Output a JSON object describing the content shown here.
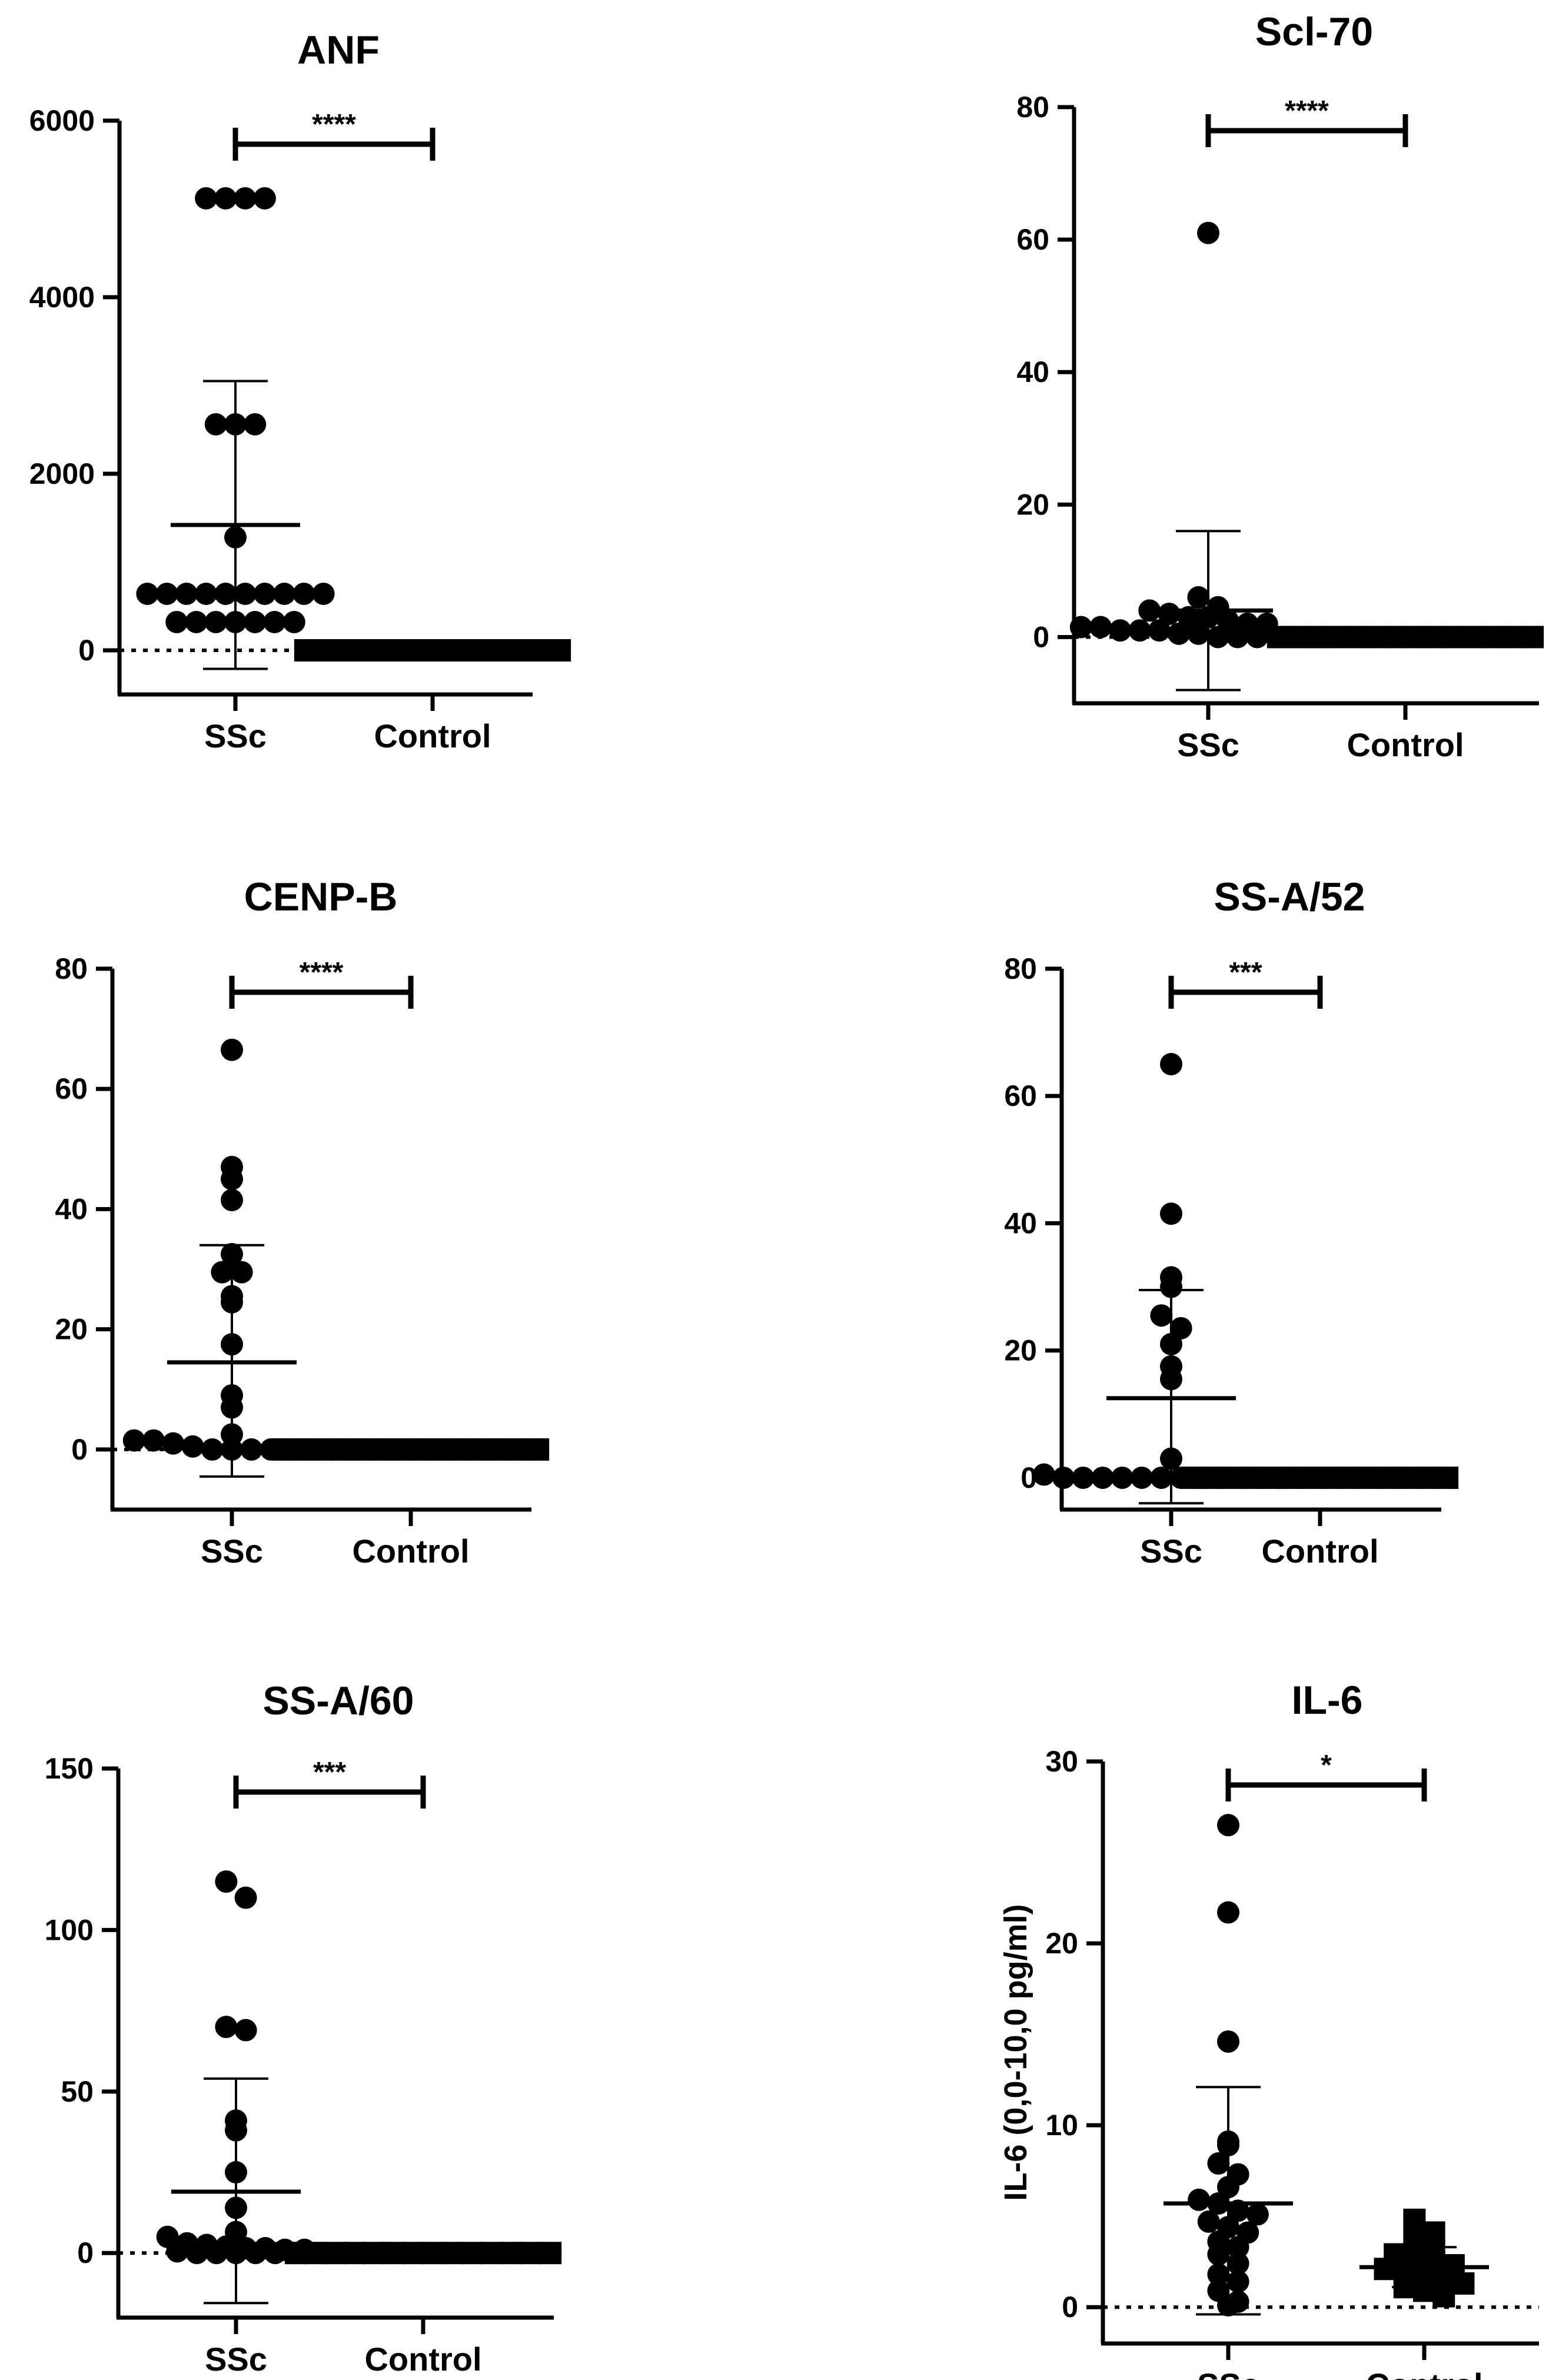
{
  "chart_data": [
    {
      "type": "scatter",
      "title": "ANF",
      "xlabel": "",
      "ylabel": "",
      "categories": [
        "SSc",
        "Control"
      ],
      "ylim": [
        -500,
        6000
      ],
      "yticks": [
        0,
        2000,
        4000,
        6000
      ],
      "significance": "****",
      "reference_line": 0,
      "series": [
        {
          "name": "SSc",
          "marker": "circle",
          "mean": 1420,
          "sd_upper": 3050,
          "sd_lower": -210,
          "values": [
            5120,
            5120,
            5120,
            5120,
            2560,
            2560,
            2560,
            1280,
            640,
            640,
            640,
            640,
            640,
            640,
            640,
            640,
            640,
            640,
            320,
            320,
            320,
            320,
            320,
            320,
            320
          ]
        },
        {
          "name": "Control",
          "marker": "square",
          "mean": 0,
          "sd_upper": 0,
          "sd_lower": 0,
          "values": [
            0,
            0,
            0,
            0,
            0,
            0,
            0,
            0,
            0,
            0,
            0,
            0,
            0,
            0
          ]
        }
      ]
    },
    {
      "type": "scatter",
      "title": "Scl-70",
      "xlabel": "",
      "ylabel": "",
      "categories": [
        "SSc",
        "Control"
      ],
      "ylim": [
        -10,
        80
      ],
      "yticks": [
        0,
        20,
        40,
        60,
        80
      ],
      "significance": "****",
      "reference_line": 0,
      "series": [
        {
          "name": "SSc",
          "marker": "circle",
          "mean": 4,
          "sd_upper": 16,
          "sd_lower": -8,
          "values": [
            61,
            6,
            4.5,
            4,
            3.5,
            3,
            3,
            2.5,
            2,
            2,
            1.5,
            1.5,
            1,
            1,
            1,
            0.5,
            0.5,
            0,
            0,
            0,
            0,
            0,
            0,
            0
          ]
        },
        {
          "name": "Control",
          "marker": "square",
          "mean": 0,
          "sd_upper": 0,
          "sd_lower": 0,
          "values": [
            0,
            0,
            0,
            0,
            0,
            0,
            0,
            0,
            0,
            0,
            0,
            0,
            0,
            0
          ]
        }
      ]
    },
    {
      "type": "scatter",
      "title": "CENP-B",
      "xlabel": "",
      "ylabel": "",
      "categories": [
        "SSc",
        "Control"
      ],
      "ylim": [
        -10,
        80
      ],
      "yticks": [
        0,
        20,
        40,
        60,
        80
      ],
      "significance": "****",
      "reference_line": 0,
      "series": [
        {
          "name": "SSc",
          "marker": "circle",
          "mean": 14.5,
          "sd_upper": 34,
          "sd_lower": -4.5,
          "values": [
            66.5,
            47,
            45,
            41.5,
            32.5,
            29.5,
            29.5,
            25.5,
            24.5,
            17.5,
            9,
            7,
            2.5,
            1.5,
            1.5,
            1,
            0.5,
            0,
            0,
            0,
            0,
            0,
            0,
            0
          ]
        },
        {
          "name": "Control",
          "marker": "square",
          "mean": 0,
          "sd_upper": 0,
          "sd_lower": 0,
          "values": [
            0,
            0,
            0,
            0,
            0,
            0,
            0,
            0,
            0,
            0,
            0,
            0,
            0,
            0
          ]
        }
      ]
    },
    {
      "type": "scatter",
      "title": "SS-A/52",
      "xlabel": "",
      "ylabel": "",
      "categories": [
        "SSc",
        "Control"
      ],
      "ylim": [
        -5,
        80
      ],
      "yticks": [
        0,
        20,
        40,
        60,
        80
      ],
      "significance": "***",
      "reference_line": 0,
      "series": [
        {
          "name": "SSc",
          "marker": "circle",
          "mean": 12.5,
          "sd_upper": 29.5,
          "sd_lower": -4,
          "values": [
            65,
            41.5,
            31.5,
            30,
            25.5,
            23.5,
            21,
            17.5,
            15.5,
            3,
            0.5,
            0,
            0,
            0,
            0,
            0,
            0,
            0,
            0,
            0,
            0,
            0,
            0,
            0
          ]
        },
        {
          "name": "Control",
          "marker": "square",
          "mean": 0,
          "sd_upper": 0,
          "sd_lower": 0,
          "values": [
            0,
            0,
            0,
            0,
            0,
            0,
            0,
            0,
            0,
            0,
            0,
            0,
            0,
            0
          ]
        }
      ]
    },
    {
      "type": "scatter",
      "title": "SS-A/60",
      "xlabel": "",
      "ylabel": "",
      "categories": [
        "SSc",
        "Control"
      ],
      "ylim": [
        -20,
        150
      ],
      "yticks": [
        0,
        50,
        100,
        150
      ],
      "significance": "***",
      "reference_line": 0,
      "series": [
        {
          "name": "SSc",
          "marker": "circle",
          "mean": 19,
          "sd_upper": 54,
          "sd_lower": -15.5,
          "values": [
            115,
            110,
            70,
            69,
            41,
            38,
            25,
            14,
            6.5,
            5,
            3,
            2.5,
            2,
            1.5,
            1.5,
            1,
            1,
            0.5,
            0,
            0,
            0,
            0,
            0,
            0
          ]
        },
        {
          "name": "Control",
          "marker": "square",
          "mean": 0,
          "sd_upper": 0,
          "sd_lower": 0,
          "values": [
            0,
            0,
            0,
            0,
            0,
            0,
            0,
            0,
            0,
            0,
            0,
            0,
            0,
            0
          ]
        }
      ]
    },
    {
      "type": "scatter",
      "title": "IL-6",
      "xlabel": "",
      "ylabel": "IL-6 (0,0-10,0 pg/ml)",
      "categories": [
        "SSc",
        "Control"
      ],
      "ylim": [
        -2,
        30
      ],
      "yticks": [
        0,
        10,
        20,
        30
      ],
      "significance": "*",
      "reference_line": 0,
      "series": [
        {
          "name": "SSc",
          "marker": "circle",
          "mean": 5.7,
          "sd_upper": 12.1,
          "sd_lower": -0.4,
          "values": [
            26.5,
            21.7,
            14.6,
            9.1,
            8.9,
            7.9,
            7.3,
            6.6,
            5.9,
            5.7,
            5.3,
            5.1,
            4.7,
            4.4,
            4.1,
            3.6,
            3.3,
            2.9,
            2.4,
            1.8,
            1.4,
            0.9,
            0.3,
            0.1
          ]
        },
        {
          "name": "Control",
          "marker": "square",
          "mean": 2.2,
          "sd_upper": 3.3,
          "sd_lower": 1.1,
          "values": [
            4.8,
            4.1,
            3.6,
            3.1,
            2.9,
            2.6,
            2.5,
            2.3,
            2.1,
            1.9,
            1.7,
            1.5,
            1.3,
            1.1,
            0.9,
            0.6
          ]
        }
      ]
    }
  ]
}
